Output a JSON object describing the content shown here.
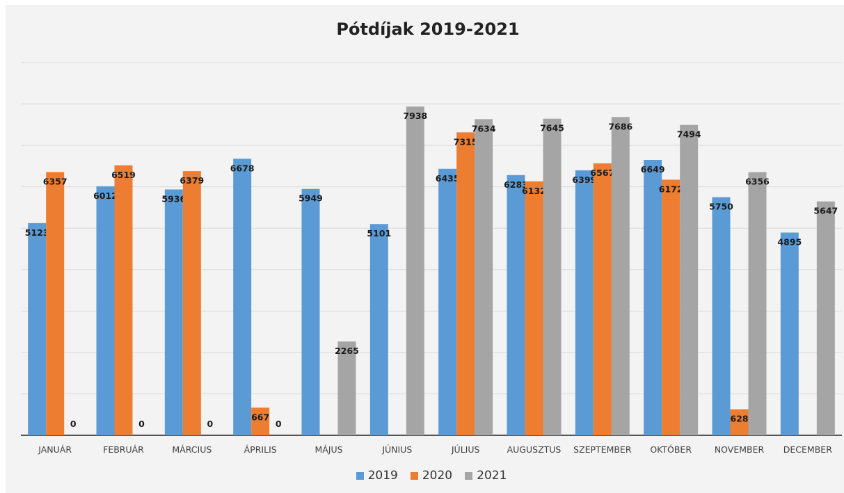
{
  "chart_data": {
    "type": "bar",
    "title": "Pótdíjak 2019-2021",
    "categories": [
      "JANUÁR",
      "FEBRUÁR",
      "MÁRCIUS",
      "ÁPRILIS",
      "MÁJUS",
      "JÚNIUS",
      "JÚLIUS",
      "AUGUSZTUS",
      "SZEPTEMBER",
      "OKTÓBER",
      "NOVEMBER",
      "DECEMBER"
    ],
    "series": [
      {
        "name": "2019",
        "color": "#5b9bd5",
        "values": [
          5123,
          6012,
          5936,
          6678,
          5949,
          5101,
          6435,
          6283,
          6399,
          6649,
          5750,
          4895
        ]
      },
      {
        "name": "2020",
        "color": "#ed7d31",
        "values": [
          6357,
          6519,
          6379,
          667,
          null,
          null,
          7315,
          6132,
          6567,
          6172,
          628,
          null
        ]
      },
      {
        "name": "2021",
        "color": "#a5a5a5",
        "values": [
          0,
          0,
          0,
          0,
          2265,
          7938,
          7634,
          7645,
          7686,
          7494,
          6356,
          5647
        ]
      }
    ],
    "ylim": [
      0,
      9000
    ],
    "grid": true,
    "legend": "bottom",
    "xlabel": "",
    "ylabel": ""
  }
}
